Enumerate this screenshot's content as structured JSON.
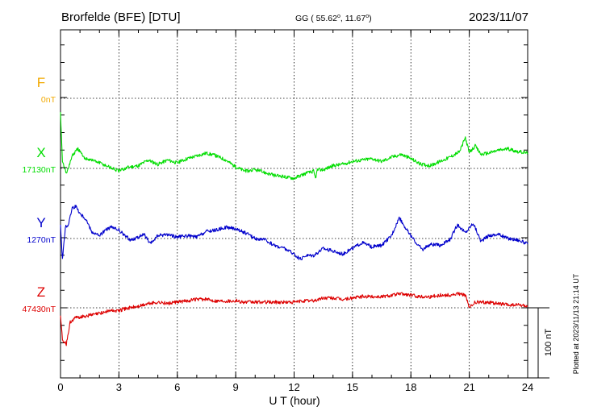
{
  "header": {
    "station": "Brorfelde (BFE)  [DTU]",
    "coords_prefix": "GG ( 55.62",
    "coords_mid": ",  11.67",
    "coords_suffix": ")",
    "degree_symbol": "o",
    "date": "2023/11/07"
  },
  "footer": {
    "plotted_at": "Plotted at 2023/11/13 21:14 UT"
  },
  "scale_bar": {
    "label": "100 nT",
    "value_nT": 100
  },
  "chart_data": {
    "type": "line",
    "title": "Brorfelde (BFE)  [DTU]",
    "xlabel": "U T (hour)",
    "ylabel": "",
    "xlim": [
      0,
      24
    ],
    "xticks": [
      "0",
      "3",
      "6",
      "9",
      "12",
      "15",
      "18",
      "21",
      "24"
    ],
    "grid": true,
    "nT_per_division": 100,
    "series": [
      {
        "name": "F",
        "baseline_label": "0nT",
        "color": "#f2a900",
        "x": [],
        "y": []
      },
      {
        "name": "X",
        "baseline_label": "17130nT",
        "color": "#00dd00",
        "x": [
          0,
          0.1,
          0.3,
          0.6,
          0.9,
          1.2,
          1.6,
          2.0,
          2.5,
          3.0,
          3.5,
          4.0,
          4.5,
          5.0,
          5.5,
          6.0,
          6.5,
          7.0,
          7.5,
          8.0,
          8.5,
          9.0,
          9.5,
          10.0,
          10.5,
          11.0,
          11.5,
          12.0,
          12.5,
          13.0,
          13.1,
          13.2,
          13.5,
          14.0,
          14.5,
          15.0,
          15.5,
          16.0,
          16.5,
          17.0,
          17.5,
          18.0,
          18.5,
          19.0,
          19.5,
          20.0,
          20.5,
          20.8,
          21.0,
          21.3,
          21.6,
          22.0,
          22.5,
          23.0,
          23.5,
          24.0
        ],
        "y": [
          80,
          12,
          -8,
          18,
          28,
          15,
          12,
          8,
          2,
          -4,
          2,
          4,
          12,
          6,
          12,
          8,
          14,
          18,
          22,
          18,
          12,
          2,
          -4,
          -2,
          -6,
          -10,
          -12,
          -14,
          -8,
          -4,
          -14,
          -2,
          -2,
          4,
          6,
          10,
          12,
          14,
          10,
          16,
          20,
          14,
          6,
          4,
          10,
          16,
          24,
          44,
          22,
          32,
          20,
          22,
          26,
          28,
          24,
          22
        ]
      },
      {
        "name": "Y",
        "baseline_label": "1270nT",
        "color": "#0000cc",
        "x": [
          0,
          0.1,
          0.25,
          0.4,
          0.6,
          0.8,
          1.0,
          1.3,
          1.6,
          2.0,
          2.3,
          2.6,
          3.0,
          3.3,
          3.6,
          4.0,
          4.3,
          4.6,
          5.0,
          5.5,
          6.0,
          6.5,
          7.0,
          7.5,
          8.0,
          8.5,
          9.0,
          9.5,
          10.0,
          10.5,
          11.0,
          11.5,
          12.0,
          12.3,
          12.6,
          13.0,
          13.5,
          14.0,
          14.5,
          15.0,
          15.5,
          16.0,
          16.5,
          17.0,
          17.4,
          17.8,
          18.2,
          18.6,
          19.0,
          19.5,
          20.0,
          20.4,
          20.8,
          21.2,
          21.6,
          22.0,
          22.5,
          23.0,
          23.5,
          24.0
        ],
        "y": [
          20,
          -30,
          16,
          20,
          44,
          46,
          36,
          28,
          10,
          4,
          12,
          16,
          12,
          4,
          -2,
          2,
          6,
          -8,
          4,
          6,
          2,
          4,
          2,
          10,
          12,
          16,
          14,
          8,
          0,
          -2,
          -10,
          -14,
          -22,
          -30,
          -24,
          -24,
          -14,
          -18,
          -22,
          -14,
          -6,
          -12,
          -10,
          4,
          30,
          12,
          -4,
          -16,
          -8,
          -10,
          -2,
          20,
          8,
          22,
          -4,
          4,
          6,
          0,
          -2,
          -8
        ]
      },
      {
        "name": "Z",
        "baseline_label": "47430nT",
        "color": "#dd0000",
        "x": [
          0,
          0.1,
          0.3,
          0.5,
          0.8,
          1.2,
          1.6,
          2.0,
          2.5,
          3.0,
          3.5,
          4.0,
          4.5,
          5.0,
          5.5,
          6.0,
          6.5,
          7.0,
          7.5,
          8.0,
          8.5,
          9.0,
          9.5,
          10.0,
          10.5,
          11.0,
          11.5,
          12.0,
          12.5,
          13.0,
          13.5,
          14.0,
          14.5,
          15.0,
          15.5,
          16.0,
          16.5,
          17.0,
          17.5,
          18.0,
          18.5,
          19.0,
          19.5,
          20.0,
          20.5,
          20.8,
          21.0,
          21.3,
          21.6,
          22.0,
          22.5,
          23.0,
          23.5,
          24.0
        ],
        "y": [
          -10,
          -46,
          -52,
          -20,
          -14,
          -12,
          -10,
          -8,
          -4,
          -4,
          0,
          2,
          6,
          8,
          6,
          8,
          10,
          12,
          12,
          10,
          10,
          10,
          8,
          8,
          8,
          8,
          8,
          8,
          10,
          10,
          14,
          14,
          12,
          14,
          16,
          16,
          16,
          18,
          20,
          18,
          16,
          16,
          18,
          18,
          20,
          18,
          0,
          8,
          8,
          8,
          6,
          4,
          4,
          2
        ]
      }
    ]
  }
}
